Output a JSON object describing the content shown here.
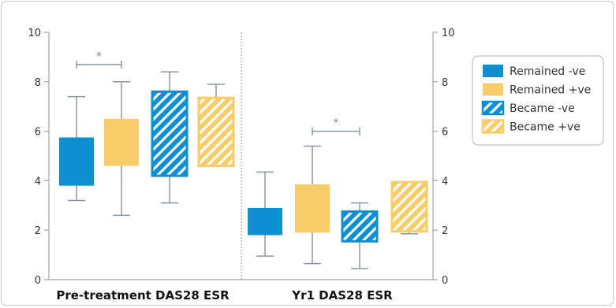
{
  "chart_data": {
    "type": "box",
    "ylim": [
      0,
      10
    ],
    "yticks": [
      "0",
      "2",
      "4",
      "6",
      "8",
      "10"
    ],
    "groups": [
      {
        "label": "Pre-treatment DAS28 ESR",
        "boxes": [
          {
            "series": "Remained -ve",
            "min": 3.2,
            "q1": 3.8,
            "q3": 5.75,
            "max": 7.4
          },
          {
            "series": "Remained +ve",
            "min": 2.6,
            "q1": 4.6,
            "q3": 6.5,
            "max": 8.0
          },
          {
            "series": "Became -ve",
            "min": 3.1,
            "q1": 4.2,
            "q3": 7.6,
            "max": 8.4
          },
          {
            "series": "Became +ve",
            "min": 4.6,
            "q1": 4.6,
            "q3": 7.35,
            "max": 7.9
          }
        ],
        "significance": {
          "from": 0,
          "to": 1,
          "label": "*",
          "y": 8.7
        }
      },
      {
        "label": "Yr1 DAS28 ESR",
        "boxes": [
          {
            "series": "Remained -ve",
            "min": 0.95,
            "q1": 1.8,
            "q3": 2.9,
            "max": 4.35
          },
          {
            "series": "Remained +ve",
            "min": 0.65,
            "q1": 1.9,
            "q3": 3.85,
            "max": 5.4
          },
          {
            "series": "Became -ve",
            "min": 0.45,
            "q1": 1.55,
            "q3": 2.75,
            "max": 3.1
          },
          {
            "series": "Became +ve",
            "min": 1.85,
            "q1": 1.95,
            "q3": 3.95,
            "max": 3.95
          }
        ],
        "significance": {
          "from": 1,
          "to": 2,
          "label": "*",
          "y": 6.0
        }
      }
    ],
    "series": [
      {
        "name": "Remained -ve",
        "color": "#0d8fd1",
        "pattern": "solid"
      },
      {
        "name": "Remained +ve",
        "color": "#f7cd6a",
        "pattern": "solid"
      },
      {
        "name": "Became -ve",
        "color": "#0d8fd1",
        "pattern": "hatched"
      },
      {
        "name": "Became +ve",
        "color": "#f7cd6a",
        "pattern": "hatched"
      }
    ],
    "legend_position": "top-right",
    "whisker_color": "#8c96a0"
  }
}
